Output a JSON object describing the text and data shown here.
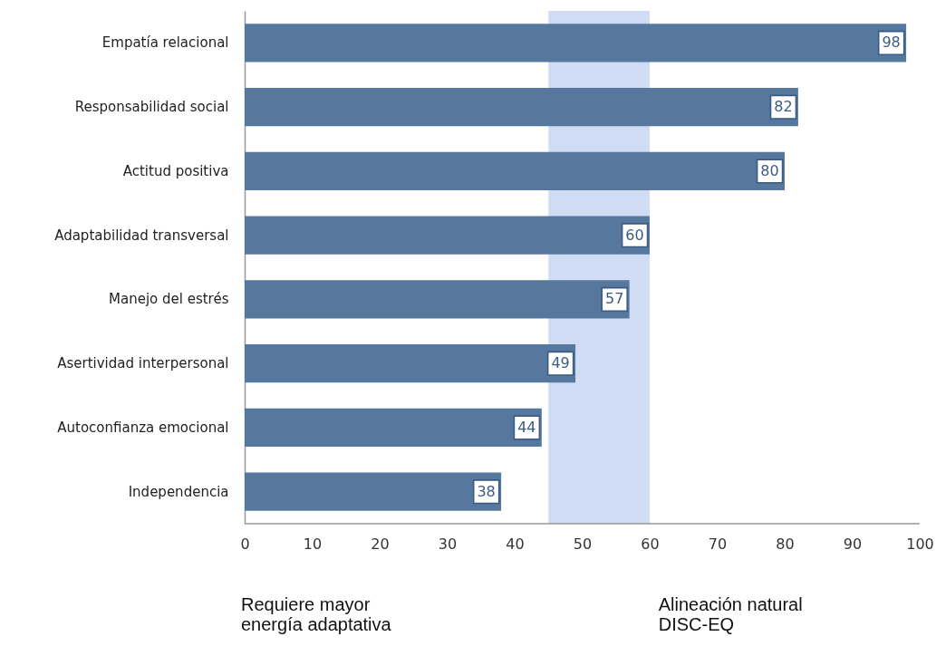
{
  "chart_data": {
    "type": "bar",
    "orientation": "horizontal",
    "categories": [
      "Empatía relacional",
      "Responsabilidad social",
      "Actitud positiva",
      "Adaptabilidad transversal",
      "Manejo del estrés",
      "Asertividad interpersonal",
      "Autoconfianza emocional",
      "Independencia"
    ],
    "values": [
      98,
      82,
      80,
      60,
      57,
      49,
      44,
      38
    ],
    "color": "#56789f",
    "xlim": [
      0,
      100
    ],
    "xticks": [
      0,
      10,
      20,
      30,
      40,
      50,
      60,
      70,
      80,
      90,
      100
    ],
    "data_labels": true,
    "bands": [
      {
        "axis": "x",
        "from": 45,
        "to": 60,
        "color": "#cfdcf3"
      }
    ],
    "annotations": [
      "Requiere mayor\nenergía adaptativa",
      "Alineación natural\nDISC-EQ"
    ]
  }
}
